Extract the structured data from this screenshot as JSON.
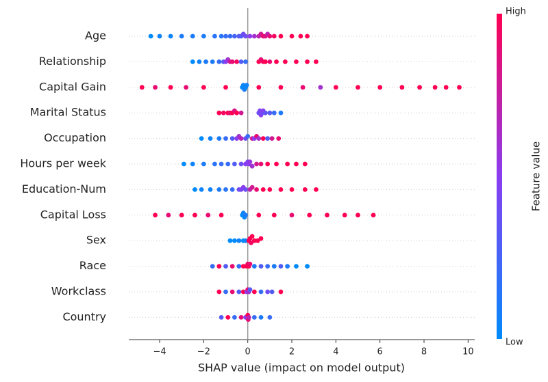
{
  "chart_data": {
    "type": "beeswarm",
    "x_label": "SHAP value (impact on model output)",
    "color_label": "Feature value",
    "color_high": "High",
    "color_low": "Low",
    "colormap": [
      "#008bfb",
      "#8a3df0",
      "#ff0052"
    ],
    "xlim": [
      -5.4,
      10.3
    ],
    "xticks": [
      {
        "value": -4,
        "label": "−4"
      },
      {
        "value": -2,
        "label": "−2"
      },
      0,
      2,
      4,
      6,
      8,
      10
    ],
    "features": [
      {
        "name": "Age",
        "points": [
          [
            -4.4,
            0
          ],
          [
            -4.0,
            0.05
          ],
          [
            -3.5,
            0.05
          ],
          [
            -3,
            0.1
          ],
          [
            -2.5,
            0.1
          ],
          [
            -2,
            0.1
          ],
          [
            -1.5,
            0.15
          ],
          [
            -1.2,
            0.15
          ],
          [
            -1,
            0.2
          ],
          [
            -0.8,
            0.2
          ],
          [
            -0.6,
            0.25
          ],
          [
            -0.4,
            0.3
          ],
          [
            -0.3,
            0.3
          ],
          [
            -0.2,
            0.4
          ],
          [
            -0.1,
            0.4
          ],
          [
            0.1,
            0.5
          ],
          [
            0.3,
            0.6
          ],
          [
            0.5,
            0.7
          ],
          [
            0.6,
            0.8
          ],
          [
            0.7,
            0.9
          ],
          [
            0.8,
            0.85
          ],
          [
            0.9,
            0.7
          ],
          [
            1.0,
            0.9
          ],
          [
            1.2,
            0.95
          ],
          [
            1.5,
            1
          ],
          [
            2.0,
            1
          ],
          [
            2.4,
            1
          ],
          [
            2.7,
            1
          ]
        ]
      },
      {
        "name": "Relationship",
        "points": [
          [
            -2.5,
            0
          ],
          [
            -2.2,
            0.05
          ],
          [
            -1.9,
            0.1
          ],
          [
            -1.6,
            0.1
          ],
          [
            -1.3,
            0.2
          ],
          [
            -1.1,
            0.3
          ],
          [
            -1,
            0.5
          ],
          [
            -0.9,
            0.6
          ],
          [
            -0.8,
            0.8
          ],
          [
            -0.7,
            0.9
          ],
          [
            -0.5,
            0.95
          ],
          [
            -0.3,
            0.3
          ],
          [
            -0.1,
            0.2
          ],
          [
            0.5,
            1
          ],
          [
            0.6,
            0.9
          ],
          [
            0.7,
            0.95
          ],
          [
            0.8,
            1
          ],
          [
            1.0,
            0.9
          ],
          [
            1.3,
            1
          ],
          [
            1.7,
            1
          ],
          [
            2.2,
            1
          ],
          [
            2.7,
            1
          ],
          [
            3.1,
            1
          ]
        ]
      },
      {
        "name": "Capital Gain",
        "points": [
          [
            -4.8,
            1
          ],
          [
            -4.2,
            0.9
          ],
          [
            -3.5,
            1
          ],
          [
            -2.8,
            0.9
          ],
          [
            -2,
            1
          ],
          [
            -1,
            1
          ],
          [
            -0.25,
            0
          ],
          [
            -0.2,
            0.05
          ],
          [
            -0.15,
            0.1
          ],
          [
            -0.1,
            0
          ],
          [
            -0.05,
            0.05
          ],
          [
            0.5,
            1
          ],
          [
            1.5,
            1
          ],
          [
            2.5,
            0.9
          ],
          [
            3.3,
            0.6
          ],
          [
            4,
            1
          ],
          [
            5,
            1
          ],
          [
            6,
            1
          ],
          [
            7,
            1
          ],
          [
            7.8,
            1
          ],
          [
            8.5,
            1
          ],
          [
            9,
            1
          ],
          [
            9.6,
            1
          ]
        ]
      },
      {
        "name": "Marital Status",
        "points": [
          [
            -1.3,
            1
          ],
          [
            -1.1,
            0.95
          ],
          [
            -0.9,
            1
          ],
          [
            -0.8,
            0.9
          ],
          [
            -0.7,
            1
          ],
          [
            -0.6,
            0.85
          ],
          [
            -0.5,
            1
          ],
          [
            -0.3,
            0.8
          ],
          [
            0.5,
            0.4
          ],
          [
            0.55,
            0.45
          ],
          [
            0.6,
            0.5
          ],
          [
            0.65,
            0.4
          ],
          [
            0.7,
            0.5
          ],
          [
            0.8,
            0.35
          ],
          [
            1.0,
            0.3
          ],
          [
            1.2,
            0.2
          ],
          [
            1.5,
            0.1
          ]
        ]
      },
      {
        "name": "Occupation",
        "points": [
          [
            -2.1,
            0
          ],
          [
            -1.7,
            0.05
          ],
          [
            -1.3,
            0.1
          ],
          [
            -1,
            0.2
          ],
          [
            -0.7,
            0.3
          ],
          [
            -0.5,
            0.5
          ],
          [
            -0.4,
            0.6
          ],
          [
            -0.3,
            0.7
          ],
          [
            -0.1,
            0.4
          ],
          [
            0,
            0.2
          ],
          [
            0.2,
            0.8
          ],
          [
            0.3,
            0.5
          ],
          [
            0.4,
            0.9
          ],
          [
            0.5,
            0.6
          ],
          [
            0.7,
            1
          ],
          [
            0.9,
            0.3
          ],
          [
            1.1,
            0.8
          ],
          [
            1.4,
            0.9
          ]
        ]
      },
      {
        "name": "Hours per week",
        "points": [
          [
            -2.9,
            0
          ],
          [
            -2.5,
            0.05
          ],
          [
            -2,
            0.1
          ],
          [
            -1.5,
            0.15
          ],
          [
            -1.2,
            0.2
          ],
          [
            -0.9,
            0.2
          ],
          [
            -0.6,
            0.3
          ],
          [
            -0.3,
            0.4
          ],
          [
            -0.1,
            0.5
          ],
          [
            0,
            0.45
          ],
          [
            0.05,
            0.5
          ],
          [
            0.1,
            0.55
          ],
          [
            0.2,
            0.6
          ],
          [
            0.4,
            0.8
          ],
          [
            0.6,
            0.9
          ],
          [
            0.9,
            1
          ],
          [
            1.3,
            1
          ],
          [
            1.8,
            1
          ],
          [
            2.2,
            1
          ],
          [
            2.6,
            1
          ]
        ]
      },
      {
        "name": "Education-Num",
        "points": [
          [
            -2.4,
            0
          ],
          [
            -2.1,
            0.05
          ],
          [
            -1.7,
            0.05
          ],
          [
            -1.3,
            0.1
          ],
          [
            -1,
            0.15
          ],
          [
            -0.7,
            0.2
          ],
          [
            -0.4,
            0.4
          ],
          [
            -0.3,
            0.45
          ],
          [
            -0.2,
            0.5
          ],
          [
            -0.1,
            0.4
          ],
          [
            0.1,
            0.7
          ],
          [
            0.2,
            0.8
          ],
          [
            0.4,
            0.9
          ],
          [
            0.7,
            1
          ],
          [
            1,
            1
          ],
          [
            1.5,
            1
          ],
          [
            2,
            1
          ],
          [
            2.6,
            1
          ],
          [
            3.1,
            1
          ]
        ]
      },
      {
        "name": "Capital Loss",
        "points": [
          [
            -4.2,
            1
          ],
          [
            -3.6,
            0.9
          ],
          [
            -3,
            1
          ],
          [
            -2.4,
            1
          ],
          [
            -1.8,
            0.9
          ],
          [
            -1.2,
            1
          ],
          [
            -0.25,
            0
          ],
          [
            -0.2,
            0.05
          ],
          [
            -0.15,
            0
          ],
          [
            -0.1,
            0.1
          ],
          [
            0.5,
            1
          ],
          [
            1.2,
            1
          ],
          [
            2,
            0.9
          ],
          [
            2.8,
            1
          ],
          [
            3.6,
            1
          ],
          [
            4.4,
            1
          ],
          [
            5,
            1
          ],
          [
            5.7,
            1
          ]
        ]
      },
      {
        "name": "Sex",
        "points": [
          [
            -0.8,
            0
          ],
          [
            -0.6,
            0
          ],
          [
            -0.4,
            0.05
          ],
          [
            -0.2,
            0
          ],
          [
            -0.1,
            0.05
          ],
          [
            0.05,
            1
          ],
          [
            0.1,
            1
          ],
          [
            0.15,
            0.95
          ],
          [
            0.2,
            1
          ],
          [
            0.3,
            1
          ],
          [
            0.45,
            1
          ],
          [
            0.6,
            1
          ]
        ]
      },
      {
        "name": "Race",
        "points": [
          [
            -1.6,
            0.2
          ],
          [
            -1.3,
            1
          ],
          [
            -1,
            0.3
          ],
          [
            -0.7,
            0.9
          ],
          [
            -0.4,
            0.2
          ],
          [
            -0.2,
            1
          ],
          [
            -0.05,
            1
          ],
          [
            0,
            0.95
          ],
          [
            0.05,
            1
          ],
          [
            0.1,
            0.9
          ],
          [
            0.3,
            0.1
          ],
          [
            0.6,
            0.3
          ],
          [
            0.9,
            0.2
          ],
          [
            1.2,
            0.1
          ],
          [
            1.5,
            0.3
          ],
          [
            1.8,
            0.1
          ],
          [
            2.2,
            0
          ],
          [
            2.7,
            0
          ]
        ]
      },
      {
        "name": "Workclass",
        "points": [
          [
            -1.3,
            1
          ],
          [
            -1,
            0.2
          ],
          [
            -0.7,
            0.9
          ],
          [
            -0.4,
            0.3
          ],
          [
            -0.2,
            1
          ],
          [
            -0.05,
            0.5
          ],
          [
            0,
            0.9
          ],
          [
            0.05,
            0.6
          ],
          [
            0.1,
            0.3
          ],
          [
            0.3,
            1
          ],
          [
            0.6,
            0.2
          ],
          [
            0.9,
            0.4
          ],
          [
            1.1,
            0.3
          ],
          [
            1.5,
            1
          ]
        ]
      },
      {
        "name": "Country",
        "points": [
          [
            -1.2,
            0.3
          ],
          [
            -0.9,
            1
          ],
          [
            -0.6,
            0.2
          ],
          [
            -0.3,
            0.9
          ],
          [
            -0.1,
            0.5
          ],
          [
            0,
            1
          ],
          [
            0.02,
            0.9
          ],
          [
            0.05,
            0.7
          ],
          [
            0.3,
            0.2
          ],
          [
            0.6,
            0.1
          ],
          [
            1.0,
            0.2
          ]
        ]
      }
    ]
  }
}
